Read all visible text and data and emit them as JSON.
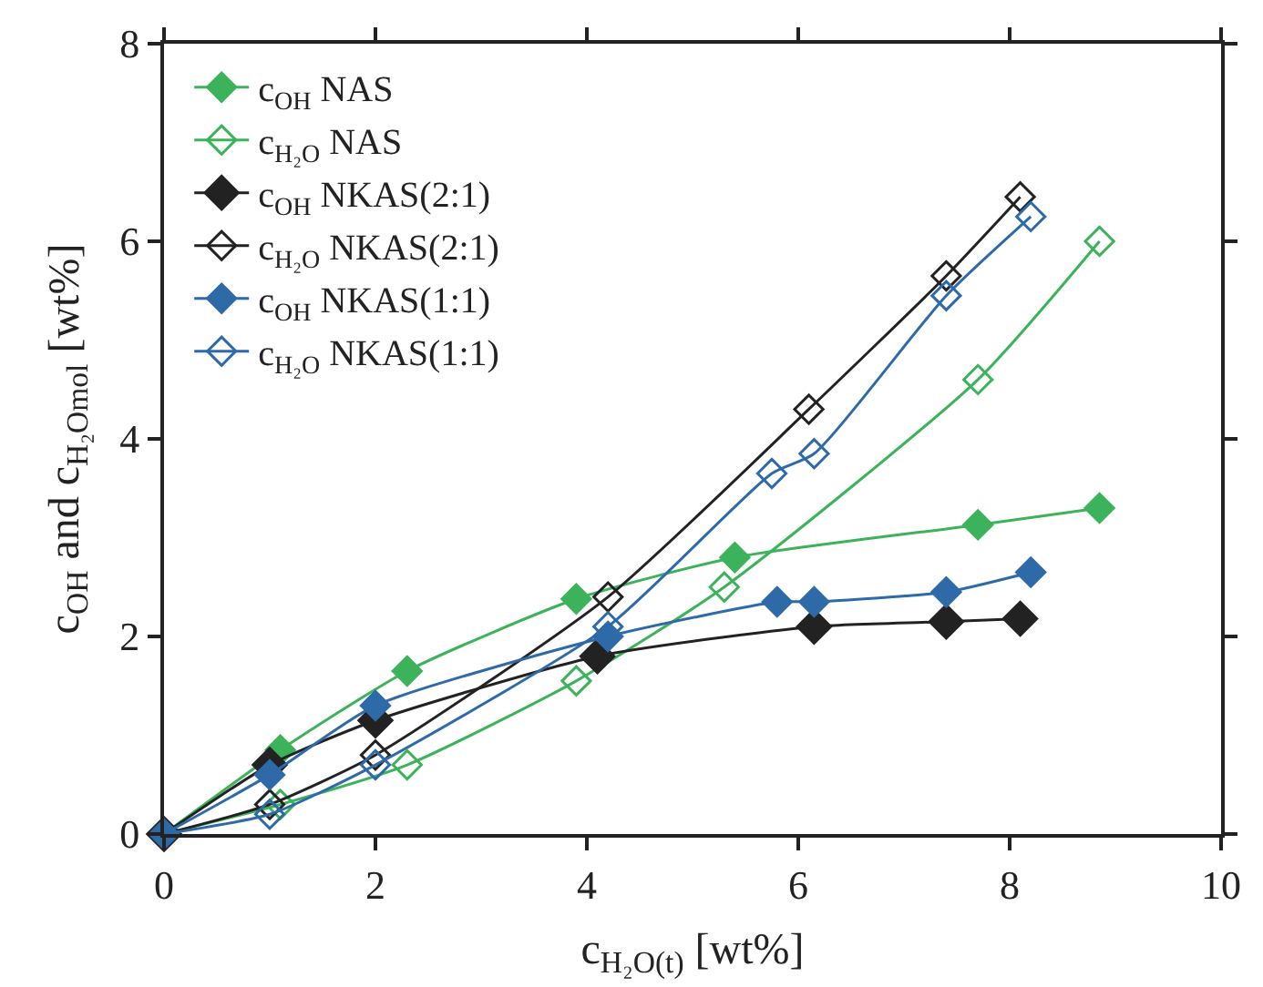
{
  "chart_data": {
    "type": "line",
    "xlabel": "c$_{H₂O(t)}$ [wt%]",
    "ylabel": "c$_{OH}$ and c$_{H₂Omol}$ [wt%]",
    "xlim": [
      0,
      10
    ],
    "xticks": [
      0,
      2,
      4,
      6,
      8,
      10
    ],
    "ylim": [
      0,
      8
    ],
    "yticks": [
      0,
      2,
      4,
      6,
      8
    ],
    "legend": "top left",
    "marker": "diamond",
    "line_style": "solid",
    "series": [
      {
        "name": "c$_{OH}$ NAS",
        "color": "#3cb35a",
        "x": [
          0,
          1.1,
          2.3,
          3.9,
          5.4,
          7.7,
          8.85
        ],
        "values": [
          0,
          0.85,
          1.65,
          2.38,
          2.8,
          3.13,
          3.3
        ]
      },
      {
        "name": "c$_{H₂O}$ NAS",
        "color": "#3cb35a",
        "x": [
          0,
          1.1,
          2.3,
          3.9,
          5.3,
          7.7,
          8.85
        ],
        "values": [
          0,
          0.3,
          0.7,
          1.55,
          2.5,
          4.6,
          6.0
        ]
      },
      {
        "name": "c$_{OH}$ NKAS(2:1)",
        "color": "#222222",
        "x": [
          0,
          1.0,
          2.0,
          4.1,
          6.15,
          7.4,
          8.1
        ],
        "values": [
          0,
          0.7,
          1.15,
          1.8,
          2.1,
          2.15,
          2.18
        ]
      },
      {
        "name": "c$_{H₂O}$ NKAS(2:1)",
        "color": "#222222",
        "x": [
          0,
          1.0,
          2.0,
          4.2,
          6.1,
          7.4,
          8.1
        ],
        "values": [
          0,
          0.3,
          0.8,
          2.4,
          4.3,
          5.65,
          6.45
        ]
      },
      {
        "name": "c$_{OH}$ NKAS(1:1)",
        "color": "#2e6aa8",
        "x": [
          0,
          1.0,
          2.0,
          4.2,
          5.8,
          6.15,
          7.4,
          8.2
        ],
        "values": [
          0,
          0.6,
          1.3,
          2.0,
          2.35,
          2.35,
          2.45,
          2.65
        ]
      },
      {
        "name": "c$_{H₂O}$ NKAS(1:1)",
        "color": "#2e6aa8",
        "x": [
          0,
          1.0,
          2.0,
          4.2,
          5.75,
          6.15,
          7.4,
          8.2
        ],
        "values": [
          0,
          0.2,
          0.7,
          2.1,
          3.65,
          3.85,
          5.45,
          6.25
        ]
      }
    ]
  }
}
